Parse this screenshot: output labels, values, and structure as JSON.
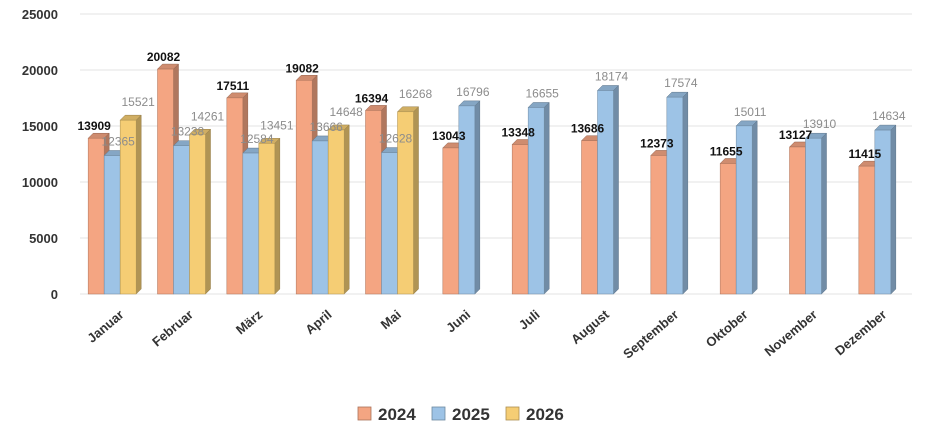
{
  "chart_data": {
    "type": "bar",
    "title": "",
    "xlabel": "",
    "ylabel": "",
    "ylim": [
      0,
      25000
    ],
    "yticks": [
      0,
      5000,
      10000,
      15000,
      20000,
      25000
    ],
    "grid": true,
    "legend_position": "bottom",
    "categories": [
      "Januar",
      "Februar",
      "März",
      "April",
      "Mai",
      "Juni",
      "Juli",
      "August",
      "September",
      "Oktober",
      "November",
      "Dezember"
    ],
    "series": [
      {
        "name": "2024",
        "color": "#f4a582",
        "values": [
          13909,
          20082,
          17511,
          19082,
          16394,
          13043,
          13348,
          13686,
          12373,
          11655,
          13127,
          11415
        ]
      },
      {
        "name": "2025",
        "color": "#9dc3e6",
        "values": [
          12365,
          13238,
          12584,
          13666,
          12628,
          16796,
          16655,
          18174,
          17574,
          15011,
          13910,
          14634
        ]
      },
      {
        "name": "2026",
        "color": "#f5cd74",
        "values": [
          15521,
          14261,
          13451,
          14648,
          16268,
          null,
          null,
          null,
          null,
          null,
          null,
          null
        ]
      }
    ]
  }
}
